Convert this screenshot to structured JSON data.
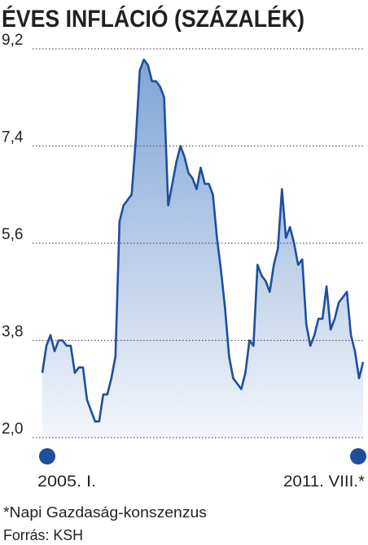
{
  "chart_data": {
    "type": "area-line",
    "title": "ÉVES INFLÁCIÓ (SZÁZALÉK)",
    "categories": [
      "2005. I.",
      null,
      null,
      null,
      null,
      null,
      null,
      null,
      null,
      null,
      null,
      null,
      null,
      null,
      null,
      null,
      null,
      null,
      null,
      null,
      null,
      null,
      null,
      null,
      null,
      null,
      null,
      null,
      null,
      null,
      null,
      null,
      null,
      null,
      null,
      null,
      null,
      null,
      null,
      null,
      null,
      null,
      null,
      null,
      null,
      null,
      null,
      null,
      null,
      null,
      null,
      null,
      null,
      null,
      null,
      null,
      null,
      null,
      null,
      null,
      null,
      null,
      null,
      null,
      null,
      null,
      null,
      null,
      null,
      null,
      null,
      null,
      null,
      null,
      null,
      null,
      null,
      null,
      null,
      "2011. VIII.*"
    ],
    "values": [
      3.2,
      3.7,
      3.9,
      3.6,
      3.8,
      3.8,
      3.7,
      3.7,
      3.2,
      3.3,
      3.3,
      2.7,
      2.5,
      2.3,
      2.3,
      2.8,
      2.8,
      3.1,
      3.5,
      6.0,
      6.3,
      6.4,
      6.5,
      7.5,
      8.8,
      9.0,
      8.9,
      8.6,
      8.6,
      8.5,
      8.3,
      6.3,
      6.7,
      7.1,
      7.4,
      7.2,
      6.9,
      6.8,
      6.6,
      7.0,
      6.7,
      6.7,
      6.5,
      5.7,
      5.1,
      4.4,
      3.5,
      3.1,
      3.0,
      2.9,
      3.2,
      3.8,
      3.7,
      5.2,
      5.0,
      4.9,
      4.7,
      5.2,
      5.5,
      6.6,
      5.7,
      5.9,
      5.6,
      5.2,
      5.3,
      4.1,
      3.7,
      3.9,
      4.2,
      4.2,
      4.8,
      4.0,
      4.2,
      4.5,
      4.6,
      4.7,
      3.9,
      3.6,
      3.1,
      3.4
    ],
    "color": "#1f4e9c",
    "ylim": [
      2.0,
      9.2
    ],
    "yticks": [
      {
        "value": 2.0,
        "label": "2,0"
      },
      {
        "value": 3.8,
        "label": "3,8"
      },
      {
        "value": 5.6,
        "label": "5,6"
      },
      {
        "value": 7.4,
        "label": "7,4"
      },
      {
        "value": 9.2,
        "label": "9,2"
      }
    ],
    "grid": true,
    "footnote": "*Napi Gazdaság-konszenzus",
    "source": "Forrás: KSH"
  }
}
